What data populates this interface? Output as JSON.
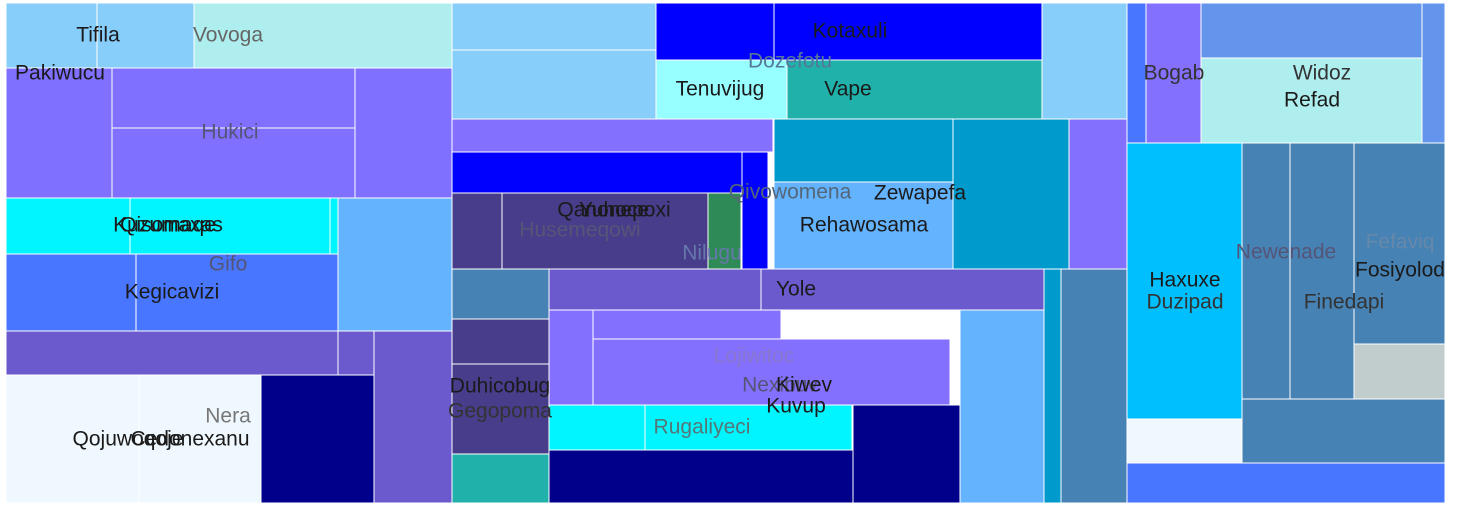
{
  "chart_data": {
    "type": "treemap",
    "title": "",
    "cells": [
      {
        "id": "a",
        "color": "#87CEFA",
        "value": 1.9
      },
      {
        "id": "b",
        "color": "#87CEFA",
        "value": 2.0
      },
      {
        "id": "c",
        "color": "#AFEEEE",
        "value": 4.7
      },
      {
        "id": "d",
        "color": "#8070FF",
        "value": 4.7
      },
      {
        "id": "e",
        "color": "#8070FF",
        "value": 4.3
      },
      {
        "id": "f",
        "color": "#8070FF",
        "value": 4.4
      },
      {
        "id": "g",
        "color": "#8070FF",
        "value": 4.8
      },
      {
        "id": "h",
        "color": "#00F5FF",
        "value": 2.5
      },
      {
        "id": "i",
        "color": "#00F5FF",
        "value": 3.0
      },
      {
        "id": "j",
        "color": "#00F5FF",
        "value": 0.1
      },
      {
        "id": "k",
        "color": "#63B3FF",
        "value": 4.0
      },
      {
        "id": "l",
        "color": "#4876FF",
        "value": 2.4
      },
      {
        "id": "m",
        "color": "#4876FF",
        "value": 3.8
      },
      {
        "id": "n",
        "color": "#6A5ACD",
        "value": 2.8
      },
      {
        "id": "o",
        "color": "#6A5ACD",
        "value": 2.8
      },
      {
        "id": "p",
        "color": "#6A5ACD",
        "value": 3.5
      },
      {
        "id": "q",
        "color": "#F0F8FF",
        "value": 3.6
      },
      {
        "id": "r",
        "color": "#F0F8FF",
        "value": 3.9
      },
      {
        "id": "s",
        "color": "#00008B",
        "value": 3.6
      },
      {
        "id": "t",
        "color": "#87CEFA",
        "value": 1.6
      },
      {
        "id": "u",
        "color": "#87CEFA",
        "value": 2.3
      },
      {
        "id": "v",
        "color": "#0000FF",
        "value": 0.9
      },
      {
        "id": "w",
        "color": "#0000FF",
        "value": 1.7
      },
      {
        "id": "x",
        "color": "#0000FF",
        "value": 1.7
      },
      {
        "id": "y",
        "color": "#97FFFF",
        "value": 1.1
      },
      {
        "id": "z",
        "color": "#20B2AA",
        "value": 1.9
      },
      {
        "id": "aa",
        "color": "#87CEFA",
        "value": 1.3
      },
      {
        "id": "ab",
        "color": "#8470FF",
        "value": 1.2
      },
      {
        "id": "ac",
        "color": "#0000FF",
        "value": 1.3
      },
      {
        "id": "ad",
        "color": "#483D8B",
        "value": 0.6
      },
      {
        "id": "ae",
        "color": "#483D8B",
        "value": 2.0
      },
      {
        "id": "af",
        "color": "#2E8B57",
        "value": 0.4
      },
      {
        "id": "ag",
        "color": "#0000FF",
        "value": 0.2
      },
      {
        "id": "ah",
        "color": "#009ACD",
        "value": 1.7
      },
      {
        "id": "ai",
        "color": "#009ACD",
        "value": 2.0
      },
      {
        "id": "aj",
        "color": "#63B3FF",
        "value": 2.4
      },
      {
        "id": "ak",
        "color": "#8470FF",
        "value": 1.7
      },
      {
        "id": "al",
        "color": "#4682B4",
        "value": 0.6
      },
      {
        "id": "am",
        "color": "#483D8B",
        "value": 0.5
      },
      {
        "id": "an",
        "color": "#483D8B",
        "value": 0.7
      },
      {
        "id": "ao",
        "color": "#20B2AA",
        "value": 0.5
      },
      {
        "id": "ap",
        "color": "#6A5ACD",
        "value": 1.2
      },
      {
        "id": "aq",
        "color": "#6A5ACD",
        "value": 1.4
      },
      {
        "id": "ar",
        "color": "#8470FF",
        "value": 0.5
      },
      {
        "id": "as",
        "color": "#8470FF",
        "value": 0.9
      },
      {
        "id": "at",
        "color": "#8470FF",
        "value": 1.5
      },
      {
        "id": "au",
        "color": "#00F5FF",
        "value": 0.5
      },
      {
        "id": "av",
        "color": "#00F5FF",
        "value": 1.0
      },
      {
        "id": "aw",
        "color": "#00008B",
        "value": 1.5
      },
      {
        "id": "ax",
        "color": "#00008B",
        "value": 0.8
      },
      {
        "id": "ay",
        "color": "#63B3FF",
        "value": 1.5
      },
      {
        "id": "az",
        "color": "#009ACD",
        "value": 0.2
      },
      {
        "id": "ba",
        "color": "#4682B4",
        "value": 1.1
      },
      {
        "id": "bb",
        "color": "#4876FF",
        "value": 0.2
      },
      {
        "id": "bc",
        "color": "#8470FF",
        "value": 0.6
      },
      {
        "id": "bd",
        "color": "#6495ED",
        "value": 1.2
      },
      {
        "id": "be",
        "color": "#AFEEEE",
        "value": 2.0
      },
      {
        "id": "bf",
        "color": "#6495ED",
        "value": 0.4
      },
      {
        "id": "bg",
        "color": "#00BFFF",
        "value": 4.3
      },
      {
        "id": "bh",
        "color": "#F0F8FF",
        "value": 0.7
      },
      {
        "id": "bi",
        "color": "#4682B4",
        "value": 0.8
      },
      {
        "id": "bj",
        "color": "#4682B4",
        "value": 1.0
      },
      {
        "id": "bk",
        "color": "#4682B4",
        "value": 1.1
      },
      {
        "id": "bl",
        "color": "#C1CDCD",
        "value": 0.5
      },
      {
        "id": "bm",
        "color": "#4682B4",
        "value": 1.2
      },
      {
        "id": "bn",
        "color": "#4876FF",
        "value": 0.7
      }
    ],
    "labels": [
      {
        "text": "Tifila",
        "color": "#1a1a1a"
      },
      {
        "text": "Vovoga",
        "color": "#666666"
      },
      {
        "text": "Pakiwucu",
        "color": "#1a1a1a"
      },
      {
        "text": "Hukici",
        "color": "#555577"
      },
      {
        "text": "Kuzumaxas",
        "color": "#1a1a1a"
      },
      {
        "text": "Qisomaqe",
        "color": "#1a1a1a"
      },
      {
        "text": "Gifo",
        "color": "#555577"
      },
      {
        "text": "Kegicavizi",
        "color": "#1a1a1a"
      },
      {
        "text": "Nera",
        "color": "#777777"
      },
      {
        "text": "Qojuwoqoje",
        "color": "#1a1a1a"
      },
      {
        "text": "Cedonexanu",
        "color": "#1a1a1a"
      },
      {
        "text": "Kotaxuli",
        "color": "#1a1a1a"
      },
      {
        "text": "Dozefotu",
        "color": "#557799"
      },
      {
        "text": "Tenuvijug",
        "color": "#1a1a1a"
      },
      {
        "text": "Vape",
        "color": "#1a1a1a"
      },
      {
        "text": "Qanonepoxi",
        "color": "#1a1a1a"
      },
      {
        "text": "Yuhoce",
        "color": "#1a1a1a"
      },
      {
        "text": "Husemeqowi",
        "color": "#555577"
      },
      {
        "text": "Qivowomena",
        "color": "#556677"
      },
      {
        "text": "Zewapefa",
        "color": "#1a1a1a"
      },
      {
        "text": "Rehawosama",
        "color": "#1a1a1a"
      },
      {
        "text": "Nilugu",
        "color": "#6677aa"
      },
      {
        "text": "Yole",
        "color": "#1a1a1a"
      },
      {
        "text": "Lojiwitoc",
        "color": "#8877cc"
      },
      {
        "text": "Nexibuv",
        "color": "#555577"
      },
      {
        "text": "Kiwev",
        "color": "#1a1a1a"
      },
      {
        "text": "Duhicobug",
        "color": "#1a1a1a"
      },
      {
        "text": "Gegopoma",
        "color": "#333333"
      },
      {
        "text": "Kuvup",
        "color": "#1a1a1a"
      },
      {
        "text": "Rugaliyeci",
        "color": "#557777"
      },
      {
        "text": "Bogab",
        "color": "#333333"
      },
      {
        "text": "Widoz",
        "color": "#333333"
      },
      {
        "text": "Refad",
        "color": "#1a1a1a"
      },
      {
        "text": "Newenade",
        "color": "#555577"
      },
      {
        "text": "Fefaviq",
        "color": "#6688aa"
      },
      {
        "text": "Fosiyolod",
        "color": "#1a1a1a"
      },
      {
        "text": "Haxuxe",
        "color": "#1a1a1a"
      },
      {
        "text": "Duzipad",
        "color": "#333333"
      },
      {
        "text": "Finedapi",
        "color": "#333333"
      }
    ]
  }
}
